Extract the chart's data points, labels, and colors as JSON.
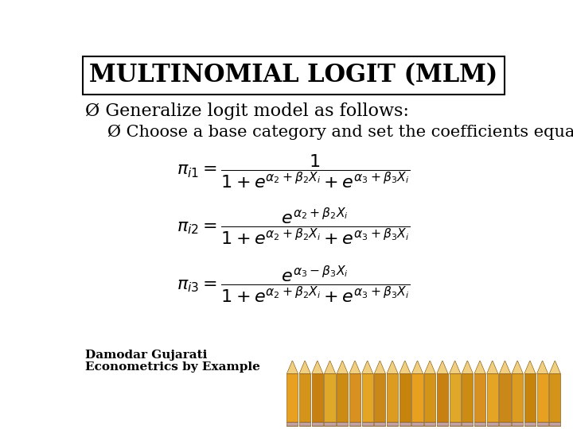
{
  "title": "MULTINOMIAL LOGIT (MLM)",
  "bullet1": "Ø Generalize logit model as follows:",
  "bullet2": "Ø Choose a base category and set the coefficients equal to zero.",
  "footer_line1": "Damodar Gujarati",
  "footer_line2": "Econometrics by Example",
  "bg_color": "#ffffff",
  "title_box_color": "#ffffff",
  "title_border_color": "#000000",
  "text_color": "#000000",
  "title_fontsize": 22,
  "bullet1_fontsize": 16,
  "bullet2_fontsize": 15,
  "eq_fontsize": 16,
  "footer_fontsize": 11
}
